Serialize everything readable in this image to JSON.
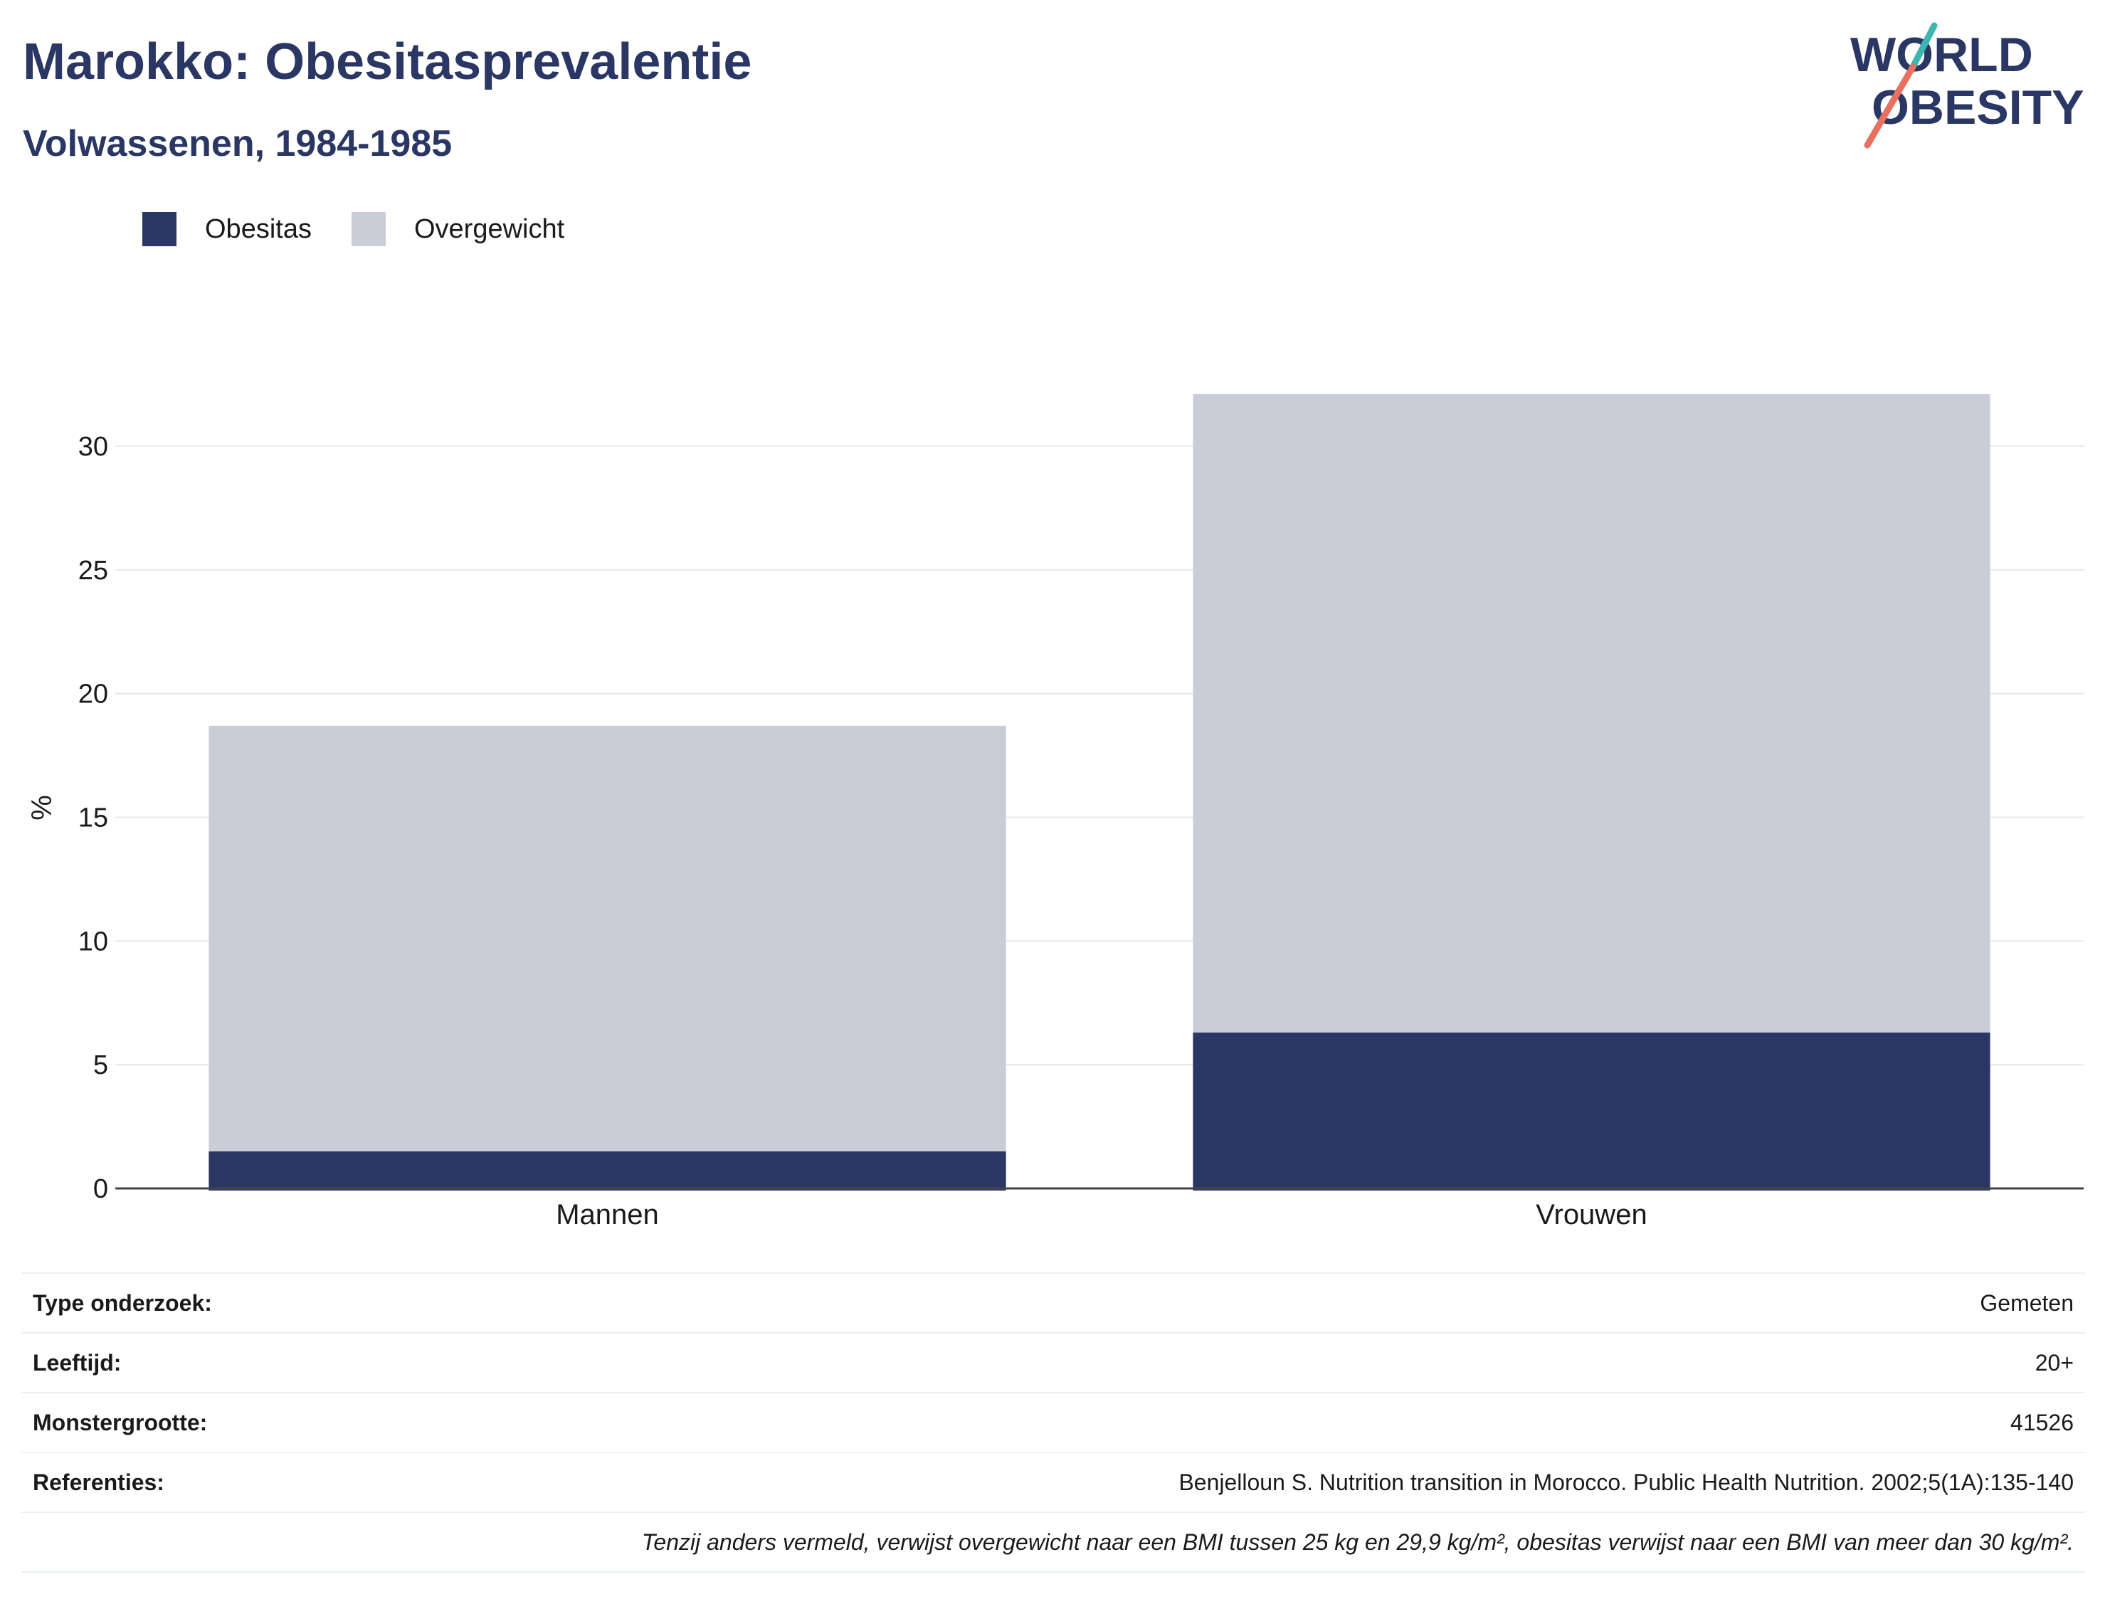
{
  "title": "Marokko: Obesitasprevalentie",
  "subtitle": "Volwassenen, 1984-1985",
  "logo": {
    "line1": "WORLD",
    "line2": "OBESITY"
  },
  "colors": {
    "brand": "#2a3663",
    "obesitas": "#2a3663",
    "overgewicht": "#cacdd8",
    "logo_teal": "#3fb5b1",
    "logo_coral": "#e8705f"
  },
  "legend": [
    {
      "label": "Obesitas",
      "color": "#2a3663"
    },
    {
      "label": "Overgewicht",
      "color": "#cacdd8"
    }
  ],
  "chart_data": {
    "type": "bar",
    "stacked": true,
    "categories": [
      "Mannen",
      "Vrouwen"
    ],
    "series": [
      {
        "name": "Obesitas",
        "values": [
          1.5,
          6.3
        ]
      },
      {
        "name": "Overgewicht",
        "values": [
          17.2,
          25.8
        ]
      }
    ],
    "ylabel": "%",
    "xlabel": "",
    "ylim": [
      0,
      32.5
    ],
    "yticks": [
      0,
      5,
      10,
      15,
      20,
      25,
      30
    ],
    "grid": true,
    "legend_position": "top-left"
  },
  "info": [
    {
      "label": "Type onderzoek:",
      "value": "Gemeten"
    },
    {
      "label": "Leeftijd:",
      "value": "20+"
    },
    {
      "label": "Monstergrootte:",
      "value": "41526"
    },
    {
      "label": "Referenties:",
      "value": "Benjelloun S. Nutrition transition in Morocco. Public Health Nutrition. 2002;5(1A):135-140"
    }
  ],
  "footnote": "Tenzij anders vermeld, verwijst overgewicht naar een BMI tussen 25 kg en 29,9 kg/m², obesitas verwijst naar een BMI van meer dan 30 kg/m²."
}
